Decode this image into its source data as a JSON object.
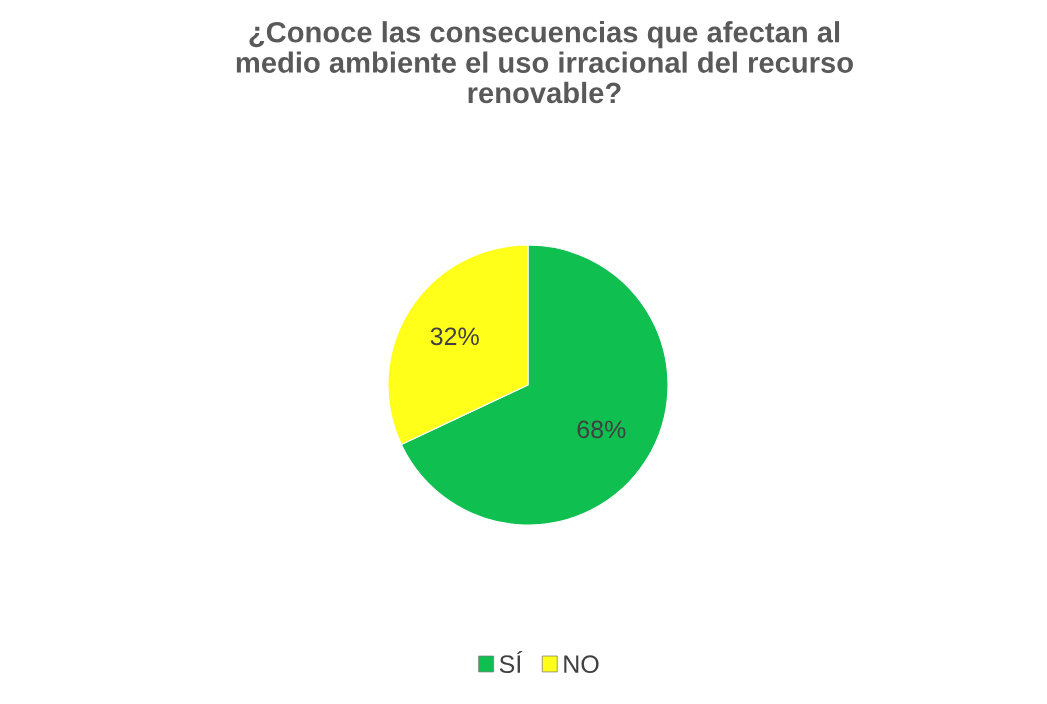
{
  "chart_data": {
    "type": "pie",
    "title": "¿Conoce las consecuencias que afectan al\nmedio ambiente el uso irracional del recurso\nrenovable?",
    "categories": [
      "SÍ",
      "NO"
    ],
    "values": [
      68,
      32
    ],
    "colors": [
      "#0fbf50",
      "#ffff19"
    ],
    "value_labels": [
      "68%",
      "32%"
    ],
    "legend": "bottom"
  }
}
